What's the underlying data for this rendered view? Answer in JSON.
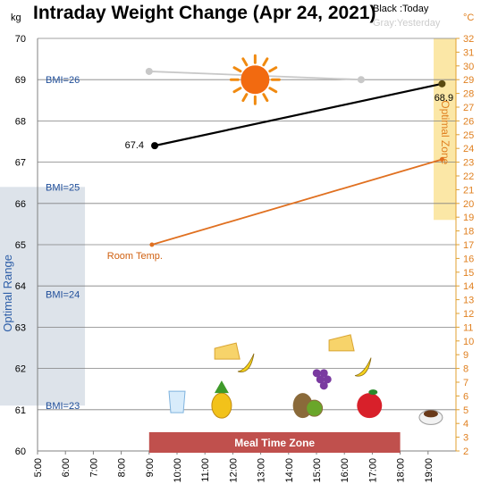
{
  "chart_data": {
    "type": "line",
    "title": "Intraday Weight Change (Apr 24, 2021)",
    "legend": {
      "today": "Black :Today",
      "yesterday": "Gray:Yesterday"
    },
    "left_axis": {
      "unit": "kg",
      "ylim": [
        60,
        70
      ],
      "ticks": [
        60,
        61,
        62,
        63,
        64,
        65,
        66,
        67,
        68,
        69,
        70
      ]
    },
    "right_axis": {
      "unit": "°C",
      "ylim": [
        2,
        32
      ],
      "ticks": [
        2,
        3,
        4,
        5,
        6,
        7,
        8,
        9,
        10,
        11,
        12,
        13,
        14,
        15,
        16,
        17,
        18,
        19,
        20,
        21,
        22,
        23,
        24,
        25,
        26,
        27,
        28,
        29,
        30,
        31,
        32
      ]
    },
    "x_axis": {
      "ticks": [
        "5:00",
        "6:00",
        "7:00",
        "8:00",
        "9:00",
        "10:00",
        "11:00",
        "12:00",
        "13:00",
        "14:00",
        "15:00",
        "16:00",
        "17:00",
        "18:00",
        "19:00"
      ],
      "xlim": [
        5,
        20
      ]
    },
    "series": [
      {
        "name": "Today",
        "color": "#000000",
        "axis": "left",
        "x": [
          9.2,
          19.5
        ],
        "y": [
          67.4,
          68.9
        ],
        "point_labels": [
          "67.4",
          "68.9"
        ]
      },
      {
        "name": "Yesterday",
        "color": "#c8c8c8",
        "axis": "left",
        "x": [
          9.0,
          16.6
        ],
        "y": [
          69.2,
          69.0
        ]
      },
      {
        "name": "Room Temp.",
        "color": "#e07020",
        "axis": "right",
        "x": [
          9.1,
          19.5
        ],
        "y": [
          17.0,
          23.2
        ],
        "point_labels": [
          "Room Temp."
        ]
      }
    ],
    "bmi_lines": [
      {
        "label": "BMI=26",
        "y": 69.0
      },
      {
        "label": "BMI=25",
        "y": 66.4
      },
      {
        "label": "BMI=24",
        "y": 63.8
      },
      {
        "label": "BMI=23",
        "y": 61.1
      }
    ],
    "optimal_range": {
      "label": "Optimal Range",
      "y_from": 61.1,
      "y_to": 66.4,
      "x_from": 5,
      "x_to": 6.7,
      "color": "#dde3ea",
      "text_color": "#2e5fa8"
    },
    "optimal_zone": {
      "label": "Optimal Zone",
      "y_from": 18.8,
      "y_to": 32,
      "x_from": 19.2,
      "x_to": 20,
      "color": "#fbe7a6"
    },
    "meal_time_zone": {
      "label": "Meal Time Zone",
      "x_from": 9.0,
      "x_to": 18.0,
      "color": "#c0504d"
    },
    "food_icons": [
      {
        "name": "water-glass-icon",
        "x": 10.0,
        "y": 61.1
      },
      {
        "name": "pineapple-icon",
        "x": 11.6,
        "y": 61.1
      },
      {
        "name": "cheese-icon",
        "x": 11.8,
        "y": 62.4
      },
      {
        "name": "banana-icon",
        "x": 12.5,
        "y": 62.1
      },
      {
        "name": "kiwi-icon",
        "x": 14.7,
        "y": 61.1
      },
      {
        "name": "cheese-icon",
        "x": 15.9,
        "y": 62.6
      },
      {
        "name": "grapes-icon",
        "x": 15.2,
        "y": 61.8
      },
      {
        "name": "banana-icon",
        "x": 16.7,
        "y": 62.0
      },
      {
        "name": "apple-icon",
        "x": 16.9,
        "y": 61.1
      },
      {
        "name": "coffee-icon",
        "x": 19.1,
        "y": 60.9
      }
    ],
    "sun_icon": {
      "name": "sun-icon",
      "x": 12.8,
      "y": 69.0
    },
    "grid": true
  }
}
